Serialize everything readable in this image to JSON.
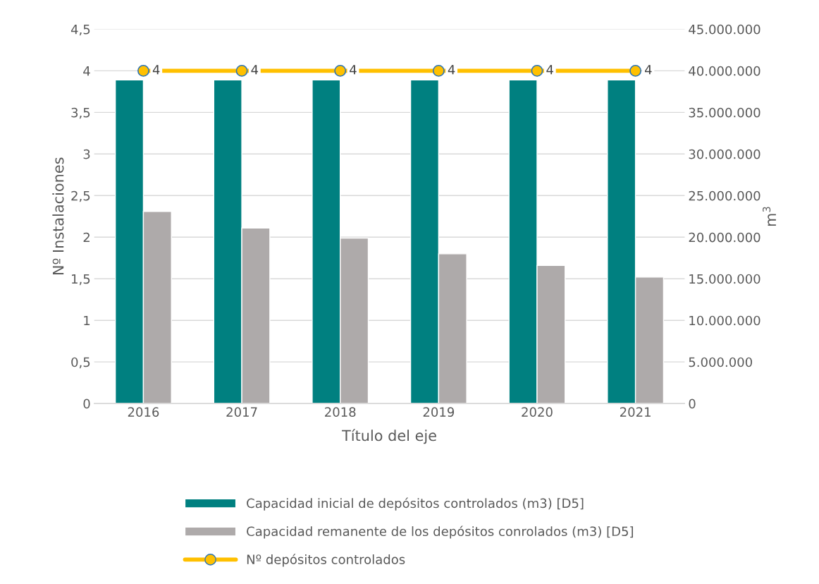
{
  "chart_data": {
    "type": "bar",
    "categories": [
      "2016",
      "2017",
      "2018",
      "2019",
      "2020",
      "2021"
    ],
    "xlabel": "Título del eje",
    "ylabel": "Nº Instalaciones",
    "y2label": "m$^{3}$",
    "series": [
      {
        "name": "Capacidad inicial de depósitos controlados (m3) [D5]",
        "color": "#008080",
        "axis": "y2",
        "values": [
          38900000,
          38900000,
          38900000,
          38900000,
          38900000,
          38900000
        ]
      },
      {
        "name": "Capacidad remanente de los depósitos conrolados (m3) [D5]",
        "color": "#aeaaaa",
        "axis": "y2",
        "values": [
          23100000,
          21100000,
          19900000,
          18000000,
          16600000,
          15200000
        ]
      },
      {
        "name": "Nº depósitos controlados",
        "type": "line",
        "color": "#ffc000",
        "marker": "circle",
        "values": [
          4,
          4,
          4,
          4,
          4,
          4
        ],
        "value_labels": [
          "4",
          "4",
          "4",
          "4",
          "4",
          "4"
        ]
      }
    ],
    "ylim": [
      0,
      4.5
    ],
    "yticks": [
      0,
      {
        "value": 0.5,
        "label": "0,5"
      },
      1,
      {
        "value": 1.5,
        "label": "1,5"
      },
      2,
      {
        "value": 2.5,
        "label": "2,5"
      },
      3,
      {
        "value": 3.5,
        "label": "3,5"
      },
      4,
      {
        "value": 4.5,
        "label": "4,5"
      }
    ],
    "y2lim": [
      0,
      45000000
    ],
    "y2ticks": [
      0,
      {
        "value": 5000000,
        "label": "5.000.000"
      },
      {
        "value": 10000000,
        "label": "10.000.000"
      },
      {
        "value": 15000000,
        "label": "15.000.000"
      },
      {
        "value": 20000000,
        "label": "20.000.000"
      },
      {
        "value": 25000000,
        "label": "25.000.000"
      },
      {
        "value": 30000000,
        "label": "30.000.000"
      },
      {
        "value": 35000000,
        "label": "35.000.000"
      },
      {
        "value": 40000000,
        "label": "40.000.000"
      },
      {
        "value": 45000000,
        "label": "45.000.000"
      }
    ],
    "grid": "y",
    "legend": "bottom"
  }
}
